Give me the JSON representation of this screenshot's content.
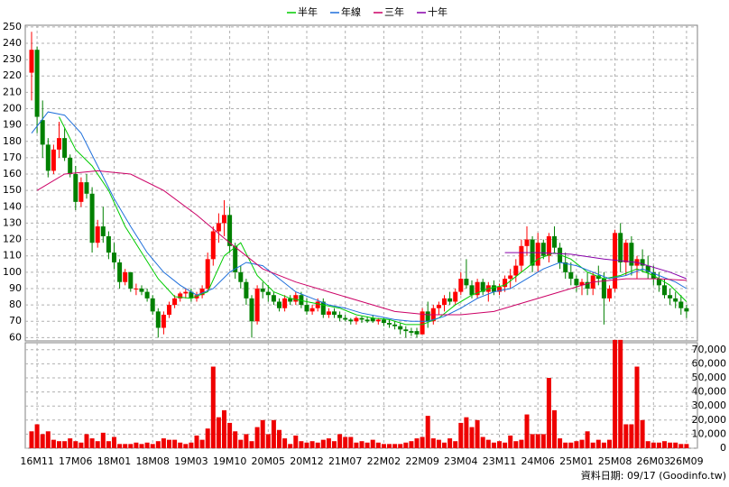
{
  "chart_data": {
    "type": "candlestick",
    "categories": [
      null,
      "16M11",
      null,
      null,
      null,
      null,
      null,
      null,
      "17M06",
      null,
      null,
      null,
      null,
      null,
      null,
      "18M01",
      null,
      null,
      null,
      null,
      null,
      null,
      "18M08",
      null,
      null,
      null,
      null,
      null,
      null,
      "19M03",
      null,
      null,
      null,
      null,
      null,
      null,
      "19M10",
      null,
      null,
      null,
      null,
      null,
      null,
      "20M05",
      null,
      null,
      null,
      null,
      null,
      null,
      "20M12",
      null,
      null,
      null,
      null,
      null,
      null,
      "21M07",
      null,
      null,
      null,
      null,
      null,
      null,
      "22M02",
      null,
      null,
      null,
      null,
      null,
      null,
      "22M09",
      null,
      null,
      null,
      null,
      null,
      null,
      "23M04",
      null,
      null,
      null,
      null,
      null,
      null,
      "23M11",
      null,
      null,
      null,
      null,
      null,
      null,
      "24M06",
      null,
      null,
      null,
      null,
      null,
      null,
      "25M01",
      null,
      null,
      null,
      null,
      null,
      null,
      "25M08",
      null,
      null,
      null,
      null,
      null,
      null,
      "26M03",
      null,
      null,
      null,
      null,
      null,
      "26M09"
    ],
    "open": [
      222,
      236,
      193,
      178,
      162,
      175,
      182,
      170,
      160,
      143,
      155,
      148,
      118,
      128,
      122,
      112,
      106,
      94,
      100,
      90,
      90,
      88,
      84,
      76,
      66,
      74,
      80,
      84,
      87,
      88,
      84,
      86,
      90,
      108,
      125,
      130,
      135,
      116,
      100,
      94,
      84,
      70,
      90,
      88,
      86,
      82,
      78,
      84,
      82,
      86,
      80,
      76,
      78,
      82,
      74,
      76,
      74,
      72,
      71,
      70,
      72,
      71,
      72,
      70,
      71,
      69,
      68,
      67,
      65,
      64,
      64,
      62,
      76,
      70,
      78,
      80,
      84,
      82,
      88,
      96,
      92,
      86,
      94,
      88,
      92,
      88,
      91,
      96,
      98,
      104,
      116,
      120,
      104,
      118,
      110,
      122,
      115,
      106,
      100,
      96,
      92,
      94,
      90,
      98,
      96,
      84,
      90,
      124,
      106,
      118,
      104,
      108,
      104,
      100,
      96,
      92,
      86,
      84,
      82,
      78
    ],
    "high": [
      247,
      238,
      205,
      182,
      178,
      192,
      188,
      172,
      165,
      158,
      160,
      152,
      132,
      140,
      125,
      118,
      108,
      102,
      100,
      93,
      92,
      90,
      86,
      78,
      76,
      82,
      86,
      88,
      90,
      90,
      88,
      92,
      112,
      128,
      136,
      144,
      140,
      118,
      104,
      96,
      86,
      92,
      94,
      92,
      88,
      84,
      86,
      86,
      88,
      88,
      84,
      80,
      84,
      84,
      78,
      78,
      76,
      74,
      72,
      73,
      73,
      73,
      74,
      72,
      72,
      71,
      70,
      69,
      67,
      66,
      66,
      78,
      82,
      80,
      82,
      86,
      88,
      90,
      100,
      108,
      95,
      96,
      96,
      94,
      95,
      93,
      98,
      102,
      108,
      120,
      128,
      122,
      124,
      120,
      124,
      128,
      118,
      112,
      106,
      98,
      96,
      100,
      100,
      104,
      100,
      92,
      126,
      130,
      120,
      122,
      110,
      114,
      110,
      104,
      100,
      96,
      90,
      88,
      86,
      80
    ],
    "low": [
      205,
      185,
      170,
      158,
      160,
      170,
      168,
      158,
      138,
      140,
      145,
      112,
      115,
      118,
      108,
      102,
      90,
      92,
      88,
      86,
      86,
      82,
      74,
      60,
      62,
      72,
      78,
      82,
      84,
      82,
      82,
      84,
      88,
      104,
      118,
      122,
      112,
      96,
      90,
      80,
      60,
      68,
      84,
      82,
      80,
      76,
      76,
      80,
      80,
      78,
      74,
      74,
      76,
      72,
      72,
      72,
      70,
      70,
      68,
      68,
      69,
      69,
      69,
      68,
      67,
      66,
      65,
      62,
      60,
      61,
      60,
      62,
      66,
      68,
      74,
      76,
      80,
      80,
      86,
      90,
      84,
      84,
      86,
      82,
      86,
      86,
      88,
      90,
      94,
      100,
      110,
      100,
      100,
      108,
      106,
      112,
      102,
      96,
      92,
      88,
      86,
      86,
      86,
      92,
      68,
      82,
      88,
      100,
      98,
      98,
      96,
      100,
      96,
      92,
      88,
      84,
      80,
      78,
      74,
      72
    ],
    "close": [
      236,
      195,
      178,
      162,
      175,
      182,
      170,
      160,
      143,
      155,
      148,
      118,
      128,
      122,
      112,
      106,
      94,
      100,
      90,
      90,
      88,
      84,
      76,
      66,
      74,
      80,
      84,
      87,
      88,
      84,
      86,
      90,
      108,
      125,
      130,
      135,
      116,
      100,
      94,
      84,
      70,
      90,
      88,
      86,
      82,
      78,
      84,
      82,
      86,
      80,
      76,
      78,
      82,
      74,
      76,
      74,
      72,
      71,
      70,
      72,
      71,
      70,
      70,
      71,
      69,
      68,
      67,
      65,
      64,
      63,
      62,
      76,
      70,
      78,
      80,
      84,
      82,
      88,
      96,
      92,
      86,
      94,
      88,
      92,
      88,
      91,
      96,
      98,
      104,
      116,
      120,
      104,
      118,
      110,
      122,
      115,
      106,
      100,
      96,
      92,
      94,
      90,
      98,
      96,
      84,
      90,
      124,
      106,
      118,
      104,
      108,
      104,
      100,
      96,
      92,
      86,
      84,
      82,
      78,
      76
    ],
    "volume": [
      12000,
      17000,
      10000,
      12000,
      6000,
      5000,
      5000,
      7000,
      5000,
      4000,
      10000,
      7000,
      5000,
      11000,
      5000,
      8000,
      3000,
      3000,
      3000,
      4000,
      3000,
      4000,
      3000,
      5000,
      7000,
      6000,
      6000,
      4000,
      3000,
      4000,
      9000,
      6000,
      14000,
      58000,
      22000,
      27000,
      18000,
      12000,
      6000,
      10000,
      5000,
      15000,
      20000,
      10000,
      20000,
      13000,
      7000,
      3000,
      9000,
      5000,
      4000,
      5000,
      4000,
      6000,
      7000,
      5000,
      10000,
      8000,
      8000,
      4000,
      5000,
      4000,
      6000,
      4000,
      3000,
      3000,
      3000,
      3000,
      4000,
      5000,
      7000,
      8000,
      23000,
      7000,
      6000,
      4000,
      7000,
      5000,
      18000,
      22000,
      15000,
      20000,
      8000,
      6000,
      4000,
      5000,
      4000,
      9000,
      5000,
      6000,
      24000,
      10000,
      10000,
      10000,
      50000,
      27000,
      7000,
      4000,
      4000,
      5000,
      6000,
      12000,
      4000,
      6000,
      4000,
      6000,
      77000,
      77000,
      17000,
      17000,
      58000,
      20000,
      5000,
      4000,
      4000,
      5000,
      4000,
      4000,
      3000,
      3000
    ],
    "up_color": "#ff0000",
    "down_color": "#008000",
    "volume_color": "#ee0000",
    "series": [
      {
        "name": "半年",
        "color": "#00cc00",
        "x": [
          5,
          8,
          11,
          14,
          17,
          20,
          23,
          26,
          29,
          32,
          35,
          38,
          41,
          44,
          47,
          50,
          53,
          56,
          59,
          62,
          65,
          68,
          71,
          74,
          77,
          80,
          83,
          86,
          89,
          92,
          95,
          98,
          101,
          104,
          107,
          110,
          113,
          116,
          119
        ],
        "values": [
          195,
          175,
          165,
          150,
          128,
          112,
          96,
          85,
          84,
          88,
          110,
          118,
          98,
          88,
          84,
          82,
          80,
          78,
          74,
          72,
          71,
          68,
          68,
          72,
          80,
          86,
          90,
          92,
          100,
          108,
          112,
          108,
          100,
          96,
          98,
          102,
          98,
          92,
          82
        ]
      },
      {
        "name": "年線",
        "color": "#1e6fdb",
        "x": [
          0,
          3,
          6,
          9,
          12,
          15,
          18,
          21,
          24,
          27,
          30,
          33,
          36,
          39,
          42,
          45,
          48,
          51,
          54,
          57,
          60,
          63,
          66,
          69,
          72,
          75,
          78,
          81,
          84,
          87,
          90,
          93,
          96,
          99,
          102,
          105,
          108,
          111,
          114,
          117,
          119
        ],
        "values": [
          185,
          198,
          196,
          185,
          165,
          145,
          128,
          112,
          100,
          92,
          86,
          90,
          100,
          106,
          104,
          96,
          88,
          84,
          80,
          78,
          75,
          73,
          71,
          70,
          70,
          73,
          78,
          84,
          88,
          90,
          96,
          102,
          106,
          104,
          100,
          96,
          98,
          102,
          98,
          94,
          90
        ]
      },
      {
        "name": "三年",
        "color": "#cc0066",
        "x": [
          1,
          6,
          12,
          18,
          24,
          30,
          36,
          42,
          48,
          54,
          60,
          66,
          72,
          78,
          84,
          90,
          96,
          102,
          108,
          114,
          119
        ],
        "values": [
          150,
          160,
          162,
          160,
          150,
          135,
          118,
          102,
          94,
          88,
          82,
          76,
          74,
          74,
          76,
          82,
          88,
          94,
          96,
          96,
          95
        ]
      },
      {
        "name": "十年",
        "color": "#8800aa",
        "x": [
          86,
          92,
          98,
          104,
          110,
          116,
          119
        ],
        "values": [
          112,
          112,
          111,
          108,
          106,
          100,
          96
        ]
      }
    ],
    "ylim": [
      58,
      251
    ],
    "yticks": [
      60,
      70,
      80,
      90,
      100,
      110,
      120,
      130,
      140,
      150,
      160,
      170,
      180,
      190,
      200,
      210,
      220,
      230,
      240,
      250
    ],
    "vlim": [
      0,
      75000
    ],
    "vticks": [
      0,
      {
        "value": 10000,
        "label": "10,000"
      },
      {
        "value": 20000,
        "label": "20,000"
      },
      {
        "value": 30000,
        "label": "30,000"
      },
      {
        "value": 40000,
        "label": "40,000"
      },
      {
        "value": 50000,
        "label": "50,000"
      },
      {
        "value": 60000,
        "label": "60,000"
      },
      {
        "value": 70000,
        "label": "70,000"
      }
    ],
    "grid": true,
    "note": "資料日期: 09/17 (Goodinfo.tw)"
  }
}
